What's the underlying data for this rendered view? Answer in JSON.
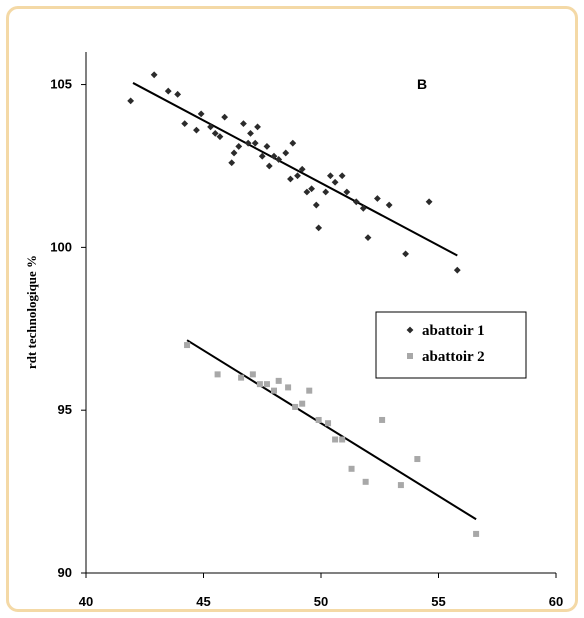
{
  "chart_data": {
    "type": "scatter",
    "title": "",
    "panel_label": "B",
    "xlabel": "",
    "ylabel": "rdt technologique %",
    "xlim": [
      40,
      60
    ],
    "ylim": [
      90,
      106
    ],
    "xticks": [
      40,
      45,
      50,
      55,
      60
    ],
    "yticks": [
      90,
      95,
      100,
      105
    ],
    "grid": false,
    "legend_position": "right-middle",
    "series": [
      {
        "name": "abattoir 1",
        "marker": "diamond",
        "color": "#2b2b2b",
        "points": [
          [
            41.9,
            104.5
          ],
          [
            42.9,
            105.3
          ],
          [
            43.5,
            104.8
          ],
          [
            43.9,
            104.7
          ],
          [
            44.2,
            103.8
          ],
          [
            44.7,
            103.6
          ],
          [
            44.9,
            104.1
          ],
          [
            45.3,
            103.7
          ],
          [
            45.5,
            103.5
          ],
          [
            45.7,
            103.4
          ],
          [
            45.9,
            104.0
          ],
          [
            46.2,
            102.6
          ],
          [
            46.3,
            102.9
          ],
          [
            46.5,
            103.1
          ],
          [
            46.7,
            103.8
          ],
          [
            46.9,
            103.2
          ],
          [
            47.0,
            103.5
          ],
          [
            47.2,
            103.2
          ],
          [
            47.3,
            103.7
          ],
          [
            47.5,
            102.8
          ],
          [
            47.7,
            103.1
          ],
          [
            47.8,
            102.5
          ],
          [
            48.0,
            102.8
          ],
          [
            48.2,
            102.7
          ],
          [
            48.5,
            102.9
          ],
          [
            48.7,
            102.1
          ],
          [
            48.8,
            103.2
          ],
          [
            49.0,
            102.2
          ],
          [
            49.2,
            102.4
          ],
          [
            49.4,
            101.7
          ],
          [
            49.6,
            101.8
          ],
          [
            49.8,
            101.3
          ],
          [
            49.9,
            100.6
          ],
          [
            50.2,
            101.7
          ],
          [
            50.4,
            102.2
          ],
          [
            50.6,
            102.0
          ],
          [
            50.9,
            102.2
          ],
          [
            51.1,
            101.7
          ],
          [
            51.5,
            101.4
          ],
          [
            51.8,
            101.2
          ],
          [
            52.0,
            100.3
          ],
          [
            52.4,
            101.5
          ],
          [
            52.9,
            101.3
          ],
          [
            53.6,
            99.8
          ],
          [
            54.6,
            101.4
          ],
          [
            55.8,
            99.3
          ]
        ],
        "trend": {
          "x": [
            42.0,
            55.8
          ],
          "y": [
            105.05,
            99.75
          ]
        }
      },
      {
        "name": "abattoir 2",
        "marker": "square",
        "color": "#a8a8a8",
        "points": [
          [
            44.3,
            97.0
          ],
          [
            45.6,
            96.1
          ],
          [
            46.6,
            96.0
          ],
          [
            47.1,
            96.1
          ],
          [
            47.4,
            95.8
          ],
          [
            47.7,
            95.8
          ],
          [
            48.0,
            95.6
          ],
          [
            48.2,
            95.9
          ],
          [
            48.6,
            95.7
          ],
          [
            48.9,
            95.1
          ],
          [
            49.2,
            95.2
          ],
          [
            49.5,
            95.6
          ],
          [
            49.9,
            94.7
          ],
          [
            50.3,
            94.6
          ],
          [
            50.6,
            94.1
          ],
          [
            50.9,
            94.1
          ],
          [
            51.3,
            93.2
          ],
          [
            51.9,
            92.8
          ],
          [
            52.6,
            94.7
          ],
          [
            53.4,
            92.7
          ],
          [
            54.1,
            93.5
          ],
          [
            56.6,
            91.2
          ]
        ],
        "trend": {
          "x": [
            44.3,
            56.6
          ],
          "y": [
            97.15,
            91.65
          ]
        }
      }
    ]
  },
  "y_tick_labels": [
    "90",
    "95",
    "100",
    "105"
  ],
  "x_tick_labels": [
    "40",
    "45",
    "50",
    "55",
    "60"
  ],
  "legend": [
    {
      "label": "abattoir 1",
      "marker": "diamond"
    },
    {
      "label": "abattoir 2",
      "marker": "square"
    }
  ]
}
